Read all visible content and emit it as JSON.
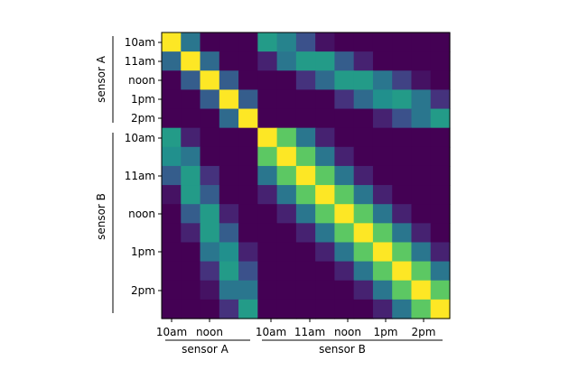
{
  "chart_data": {
    "type": "heatmap",
    "colormap": "viridis",
    "value_range": [
      0,
      1
    ],
    "groups": [
      {
        "name": "sensor A",
        "size": 5,
        "tick_labels": [
          "10am",
          "11am",
          "noon",
          "1pm",
          "2pm"
        ]
      },
      {
        "name": "sensor B",
        "size": 10,
        "tick_labels": [
          "10am",
          "11am",
          "noon",
          "1pm",
          "2pm"
        ]
      }
    ],
    "x_tick_labels": [
      {
        "group": "sensor A",
        "labels": [
          "10am",
          "noon"
        ]
      },
      {
        "group": "sensor B",
        "labels": [
          "10am",
          "11am",
          "noon",
          "1pm",
          "2pm"
        ]
      }
    ],
    "matrix": [
      [
        1.0,
        0.4,
        0.0,
        0.0,
        0.0,
        0.55,
        0.45,
        0.25,
        0.05,
        0.0,
        0.0,
        0.0,
        0.0,
        0.0,
        0.0
      ],
      [
        0.35,
        1.0,
        0.35,
        0.0,
        0.0,
        0.1,
        0.4,
        0.55,
        0.55,
        0.3,
        0.1,
        0.0,
        0.0,
        0.0,
        0.0
      ],
      [
        0.0,
        0.3,
        1.0,
        0.3,
        0.0,
        0.0,
        0.0,
        0.15,
        0.35,
        0.55,
        0.55,
        0.4,
        0.2,
        0.05,
        0.0
      ],
      [
        0.0,
        0.0,
        0.3,
        1.0,
        0.3,
        0.0,
        0.0,
        0.0,
        0.0,
        0.15,
        0.35,
        0.5,
        0.55,
        0.4,
        0.15
      ],
      [
        0.0,
        0.0,
        0.0,
        0.35,
        1.0,
        0.0,
        0.0,
        0.0,
        0.0,
        0.0,
        0.0,
        0.1,
        0.25,
        0.4,
        0.55
      ],
      [
        0.55,
        0.1,
        0.0,
        0.0,
        0.0,
        1.0,
        0.75,
        0.4,
        0.1,
        0.0,
        0.0,
        0.0,
        0.0,
        0.0,
        0.0
      ],
      [
        0.5,
        0.4,
        0.0,
        0.0,
        0.0,
        0.75,
        1.0,
        0.75,
        0.4,
        0.1,
        0.0,
        0.0,
        0.0,
        0.0,
        0.0
      ],
      [
        0.3,
        0.55,
        0.15,
        0.0,
        0.0,
        0.4,
        0.75,
        1.0,
        0.75,
        0.4,
        0.1,
        0.0,
        0.0,
        0.0,
        0.0
      ],
      [
        0.05,
        0.55,
        0.3,
        0.0,
        0.0,
        0.1,
        0.4,
        0.75,
        1.0,
        0.75,
        0.4,
        0.1,
        0.0,
        0.0,
        0.0
      ],
      [
        0.0,
        0.3,
        0.55,
        0.1,
        0.0,
        0.0,
        0.1,
        0.4,
        0.75,
        1.0,
        0.75,
        0.4,
        0.1,
        0.0,
        0.0
      ],
      [
        0.0,
        0.1,
        0.55,
        0.3,
        0.0,
        0.0,
        0.0,
        0.1,
        0.4,
        0.75,
        1.0,
        0.75,
        0.4,
        0.1,
        0.0
      ],
      [
        0.0,
        0.0,
        0.4,
        0.5,
        0.1,
        0.0,
        0.0,
        0.0,
        0.1,
        0.4,
        0.75,
        1.0,
        0.75,
        0.4,
        0.1
      ],
      [
        0.0,
        0.0,
        0.15,
        0.55,
        0.25,
        0.0,
        0.0,
        0.0,
        0.0,
        0.1,
        0.4,
        0.75,
        1.0,
        0.75,
        0.4
      ],
      [
        0.0,
        0.0,
        0.05,
        0.4,
        0.4,
        0.0,
        0.0,
        0.0,
        0.0,
        0.0,
        0.1,
        0.4,
        0.75,
        1.0,
        0.75
      ],
      [
        0.0,
        0.0,
        0.0,
        0.15,
        0.55,
        0.0,
        0.0,
        0.0,
        0.0,
        0.0,
        0.0,
        0.1,
        0.4,
        0.75,
        1.0
      ]
    ],
    "grid": false,
    "legend": "none"
  }
}
